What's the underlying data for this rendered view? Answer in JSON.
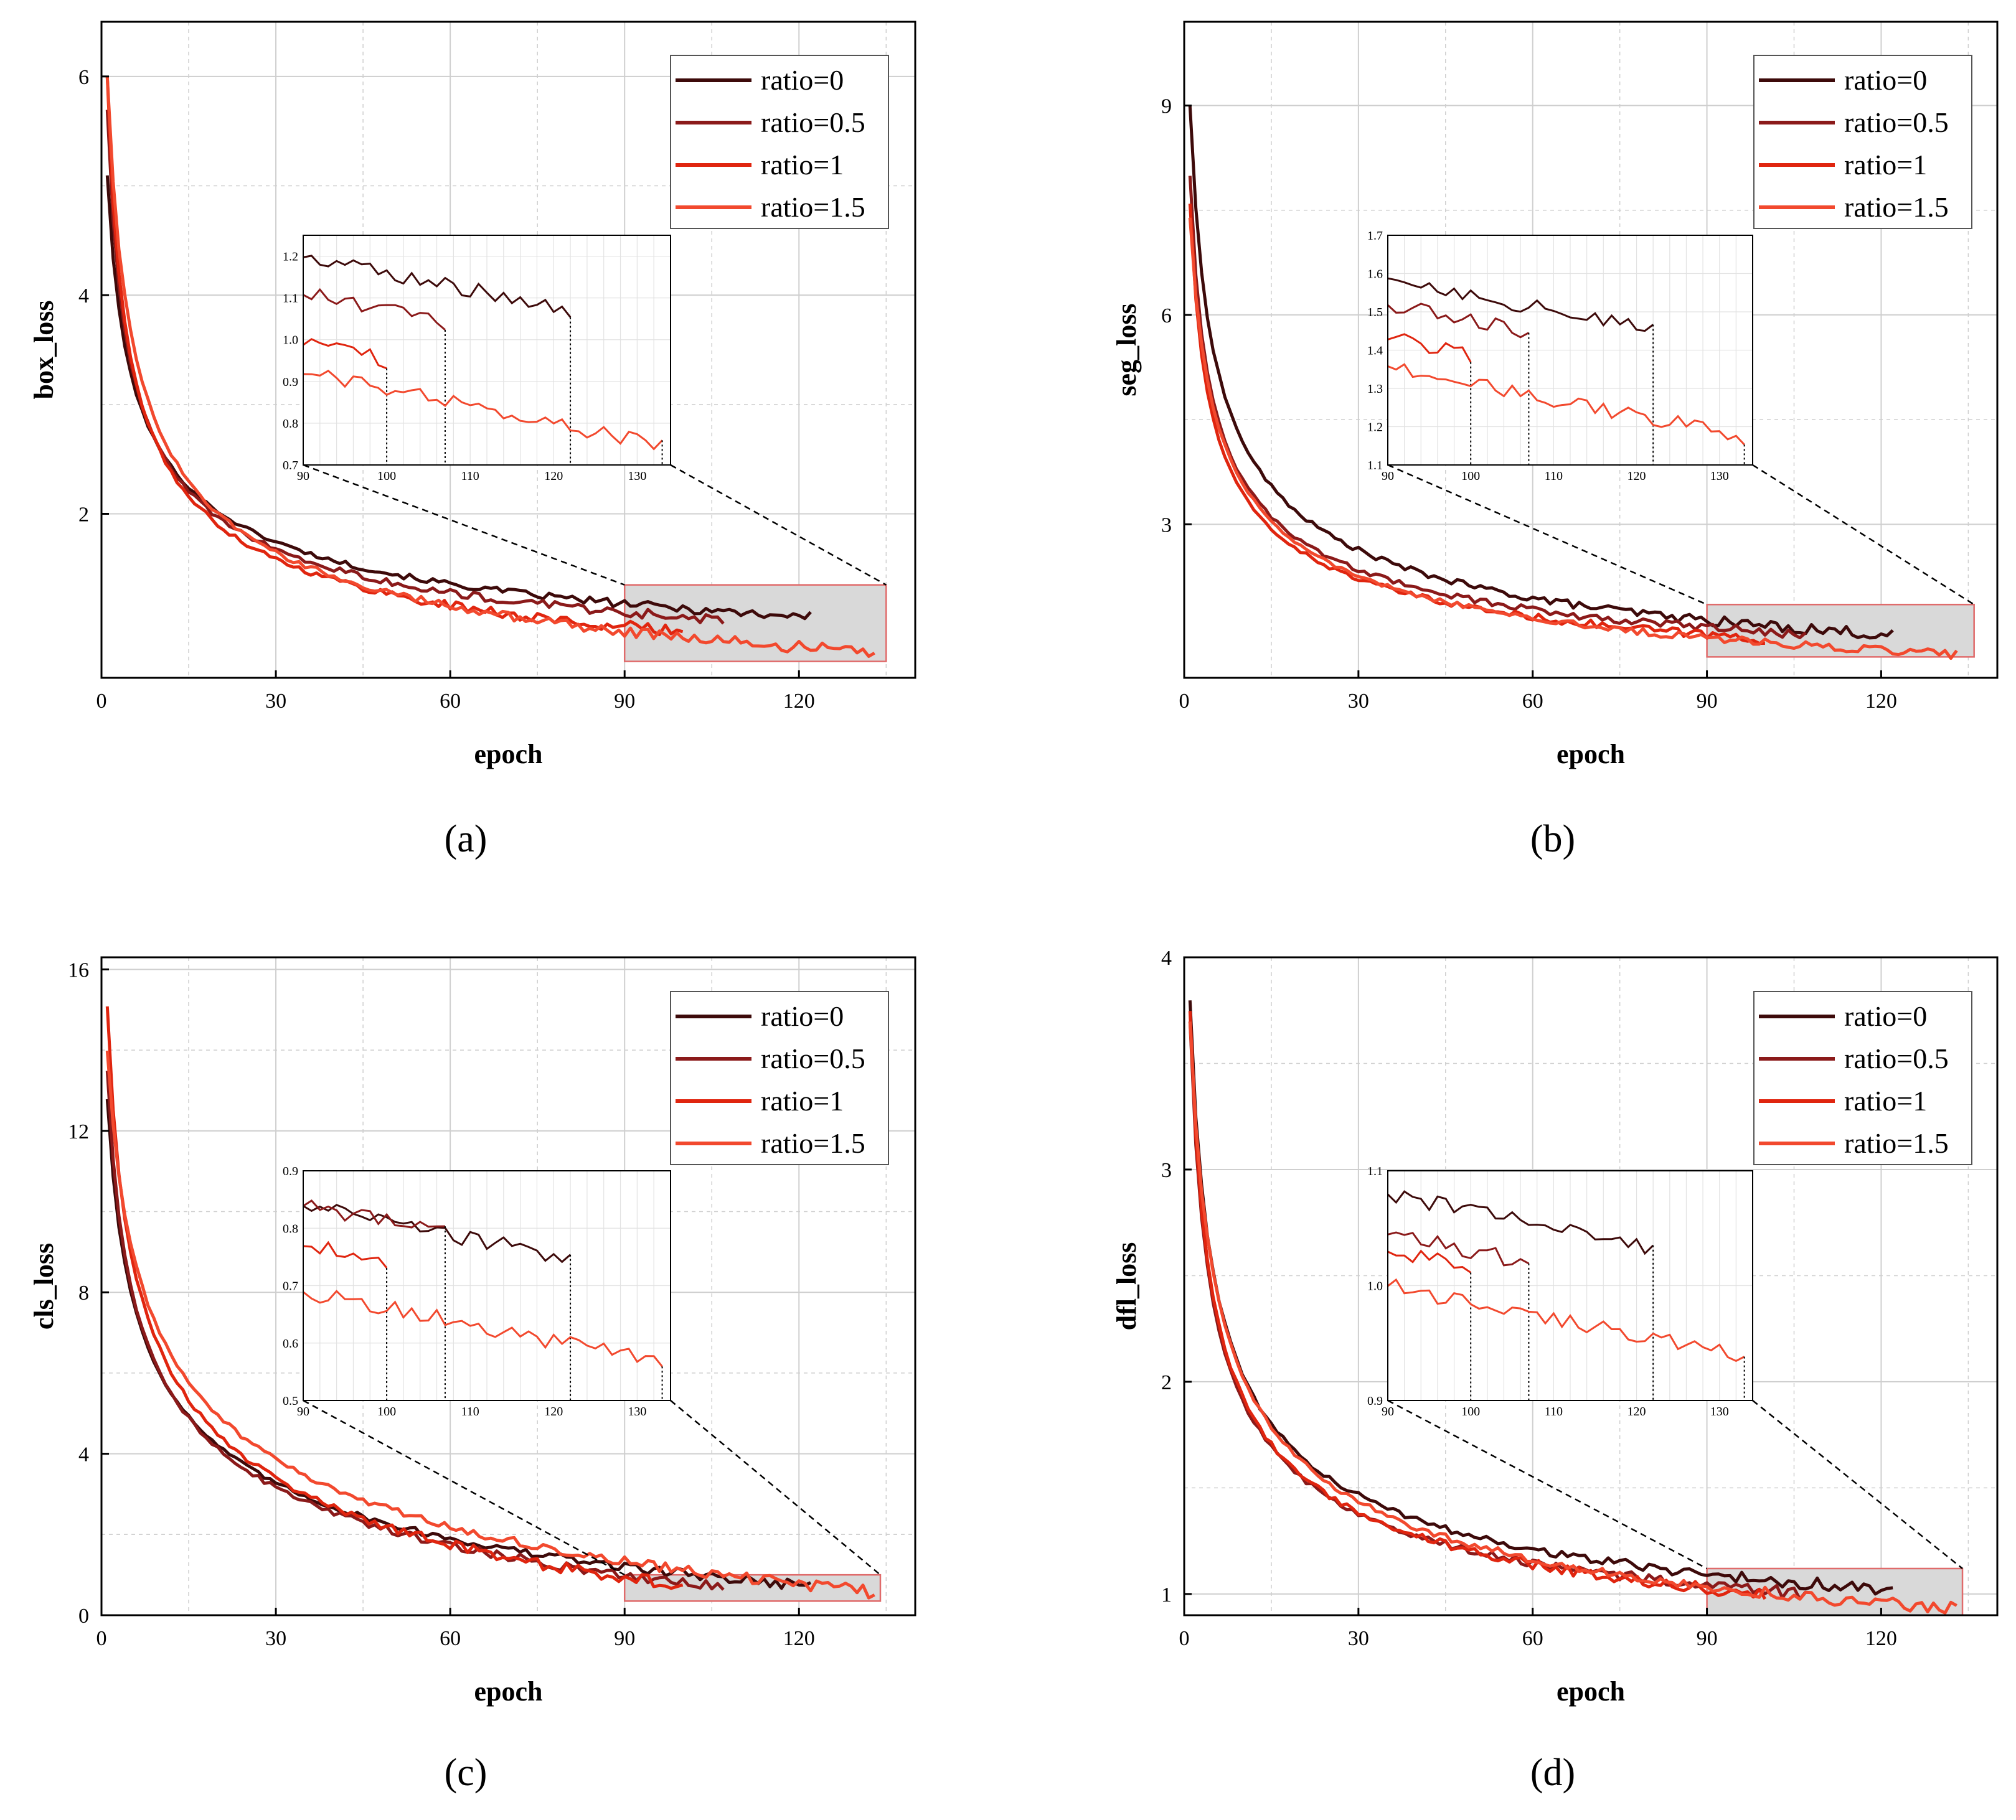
{
  "figure_captions": [
    "(a)",
    "(b)",
    "(c)",
    "(d)"
  ],
  "colors": {
    "ratio=0": "#3d0a0a",
    "ratio=0.5": "#8b1a1a",
    "ratio=1": "#e0250f",
    "ratio=1.5": "#f2492e",
    "grid": "#cfcfcf",
    "zoom_fill": "#d9d9d9",
    "zoom_edge": "#e06b6b"
  },
  "chart_data": [
    {
      "type": "line",
      "caption": "(a)",
      "xlabel": "epoch",
      "ylabel": "box_loss",
      "xlim": [
        0,
        140
      ],
      "ylim": [
        0.5,
        6.5
      ],
      "xticks": [
        0,
        30,
        60,
        90,
        120
      ],
      "yticks": [
        2,
        4,
        6
      ],
      "legend": [
        "ratio=0",
        "ratio=0.5",
        "ratio=1",
        "ratio=1.5"
      ],
      "legend_position": "top-right",
      "series": [
        {
          "name": "ratio=0",
          "end_epoch": 122,
          "start": 5.1,
          "end": 1.06,
          "knee": 0.42
        },
        {
          "name": "ratio=0.5",
          "end_epoch": 107,
          "start": 5.7,
          "end": 1.03,
          "knee": 0.46
        },
        {
          "name": "ratio=1",
          "end_epoch": 100,
          "start": 6.0,
          "end": 0.92,
          "knee": 0.45
        },
        {
          "name": "ratio=1.5",
          "end_epoch": 133,
          "start": 6.0,
          "end": 0.74,
          "knee": 0.45
        }
      ],
      "inset": {
        "xlim": [
          90,
          134
        ],
        "ylim": [
          0.7,
          1.25
        ],
        "xticks": [
          90,
          100,
          110,
          120,
          130
        ],
        "yticks": [
          0.7,
          0.8,
          0.9,
          1.0,
          1.1,
          1.2
        ],
        "ytick_labels": [
          "0.7",
          "0.8",
          "0.9",
          "1.0",
          "1.1",
          "1.2"
        ],
        "series_start": [
          1.2,
          1.11,
          0.99,
          0.92
        ],
        "zoom_box": {
          "x": [
            90,
            135
          ],
          "y": [
            0.65,
            1.35
          ]
        }
      }
    },
    {
      "type": "line",
      "caption": "(b)",
      "xlabel": "epoch",
      "ylabel": "seg_loss",
      "xlim": [
        0,
        140
      ],
      "ylim": [
        0.8,
        10.2
      ],
      "xticks": [
        0,
        30,
        60,
        90,
        120
      ],
      "yticks": [
        3,
        6,
        9
      ],
      "legend": [
        "ratio=0",
        "ratio=0.5",
        "ratio=1",
        "ratio=1.5"
      ],
      "legend_position": "top-right",
      "series": [
        {
          "name": "ratio=0",
          "end_epoch": 122,
          "start": 9.0,
          "end": 1.42,
          "knee": 0.45
        },
        {
          "name": "ratio=0.5",
          "end_epoch": 107,
          "start": 8.0,
          "end": 1.42,
          "knee": 0.45
        },
        {
          "name": "ratio=1",
          "end_epoch": 100,
          "start": 7.6,
          "end": 1.36,
          "knee": 0.43
        },
        {
          "name": "ratio=1.5",
          "end_epoch": 133,
          "start": 7.4,
          "end": 1.14,
          "knee": 0.43
        }
      ],
      "inset": {
        "xlim": [
          90,
          134
        ],
        "ylim": [
          1.1,
          1.7
        ],
        "xticks": [
          90,
          100,
          110,
          120,
          130
        ],
        "yticks": [
          1.1,
          1.2,
          1.3,
          1.4,
          1.5,
          1.6,
          1.7
        ],
        "ytick_labels": [
          "1.1",
          "1.2",
          "1.3",
          "1.4",
          "1.5",
          "1.6",
          "1.7"
        ],
        "series_start": [
          1.59,
          1.52,
          1.43,
          1.36
        ],
        "zoom_box": {
          "x": [
            90,
            136
          ],
          "y": [
            1.1,
            1.85
          ]
        }
      }
    },
    {
      "type": "line",
      "caption": "(c)",
      "xlabel": "epoch",
      "ylabel": "cls_loss",
      "xlim": [
        0,
        140
      ],
      "ylim": [
        0,
        16.3
      ],
      "xticks": [
        0,
        30,
        60,
        90,
        120
      ],
      "yticks": [
        0,
        4,
        8,
        12,
        16
      ],
      "legend": [
        "ratio=0",
        "ratio=0.5",
        "ratio=1",
        "ratio=1.5"
      ],
      "legend_position": "top-right",
      "series": [
        {
          "name": "ratio=0",
          "end_epoch": 122,
          "start": 12.8,
          "end": 0.74,
          "knee": 0.3
        },
        {
          "name": "ratio=0.5",
          "end_epoch": 107,
          "start": 13.5,
          "end": 0.73,
          "knee": 0.29
        },
        {
          "name": "ratio=1",
          "end_epoch": 100,
          "start": 15.1,
          "end": 0.72,
          "knee": 0.27
        },
        {
          "name": "ratio=1.5",
          "end_epoch": 133,
          "start": 14.0,
          "end": 0.57,
          "knee": 0.25
        }
      ],
      "inset": {
        "xlim": [
          90,
          134
        ],
        "ylim": [
          0.5,
          0.9
        ],
        "xticks": [
          90,
          100,
          110,
          120,
          130
        ],
        "yticks": [
          0.5,
          0.6,
          0.7,
          0.8,
          0.9
        ],
        "ytick_labels": [
          "0.5",
          "0.6",
          "0.7",
          "0.8",
          "0.9"
        ],
        "series_start": [
          0.84,
          0.84,
          0.77,
          0.69
        ],
        "zoom_box": {
          "x": [
            90,
            134
          ],
          "y": [
            0.35,
            1.0
          ]
        }
      }
    },
    {
      "type": "line",
      "caption": "(d)",
      "xlabel": "epoch",
      "ylabel": "dfl_loss",
      "xlim": [
        0,
        140
      ],
      "ylim": [
        0.9,
        4.0
      ],
      "xticks": [
        0,
        30,
        60,
        90,
        120
      ],
      "yticks": [
        1,
        2,
        3,
        4
      ],
      "legend": [
        "ratio=0",
        "ratio=0.5",
        "ratio=1",
        "ratio=1.5"
      ],
      "legend_position": "top-right",
      "series": [
        {
          "name": "ratio=0",
          "end_epoch": 122,
          "start": 3.8,
          "end": 1.02,
          "knee": 0.45
        },
        {
          "name": "ratio=0.5",
          "end_epoch": 107,
          "start": 3.7,
          "end": 1.0,
          "knee": 0.45
        },
        {
          "name": "ratio=1",
          "end_epoch": 100,
          "start": 3.75,
          "end": 1.0,
          "knee": 0.42
        },
        {
          "name": "ratio=1.5",
          "end_epoch": 133,
          "start": 3.7,
          "end": 0.93,
          "knee": 0.42
        }
      ],
      "inset": {
        "xlim": [
          90,
          134
        ],
        "ylim": [
          0.9,
          1.1
        ],
        "xticks": [
          90,
          100,
          110,
          120,
          130
        ],
        "yticks": [
          0.9,
          1.0,
          1.1
        ],
        "ytick_labels": [
          "0.9",
          "1.0",
          "1.1"
        ],
        "series_start": [
          1.08,
          1.045,
          1.03,
          1.0
        ],
        "zoom_box": {
          "x": [
            90,
            134
          ],
          "y": [
            0.9,
            1.12
          ]
        }
      }
    }
  ]
}
